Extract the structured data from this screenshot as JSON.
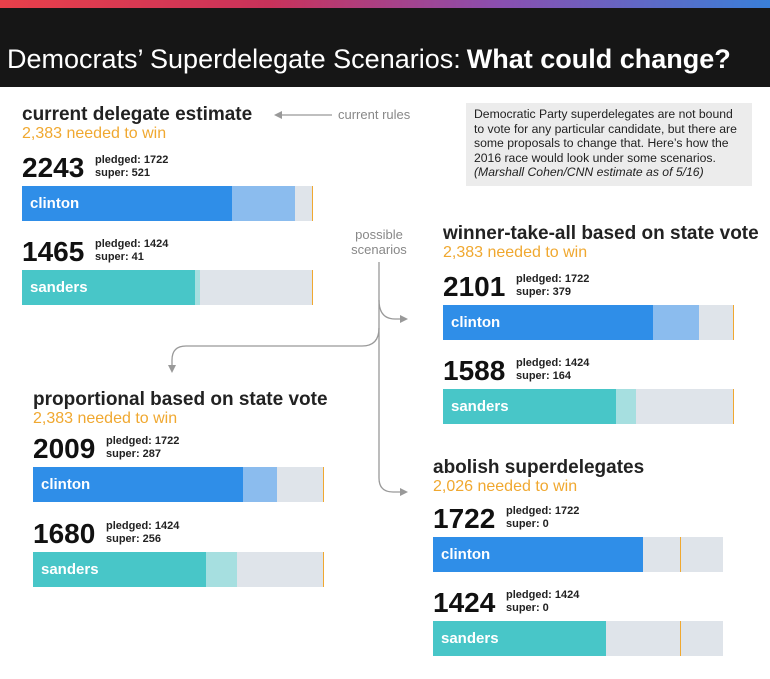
{
  "header": {
    "title_plain": "Democrats’ Superdelegate Scenarios:",
    "title_bold": "What could change?"
  },
  "labels": {
    "current_rules": "current rules",
    "possible_scenarios_line1": "possible",
    "possible_scenarios_line2": "scenarios"
  },
  "note": {
    "text": "Democratic Party superdelegates are not bound to vote for any particular candidate, but there are some proposals to change that. Here’s how the 2016 race would look under some scenarios.",
    "citation": "(Marshall Cohen/CNN estimate as of 5/16)"
  },
  "colors": {
    "clinton_pledged": "#2f8ee8",
    "clinton_super": "#8bbcee",
    "sanders_pledged": "#48c6c8",
    "sanders_super": "#a6dfe0",
    "empty": "#dfe4ea",
    "threshold": "#f0a830"
  },
  "chart_data": [
    {
      "type": "bar",
      "title": "current delegate estimate",
      "subtitle": "2,383 needed to win",
      "needed": 2383,
      "candidates": [
        {
          "name": "clinton",
          "total": "2243",
          "pledged_label": "pledged: 1722",
          "super_label": "super: 521",
          "pledged": 1722,
          "super": 521
        },
        {
          "name": "sanders",
          "total": "1465",
          "pledged_label": "pledged: 1424",
          "super_label": "super: 41",
          "pledged": 1424,
          "super": 41
        }
      ]
    },
    {
      "type": "bar",
      "title": "winner-take-all based on state vote",
      "subtitle": "2,383 needed to win",
      "needed": 2383,
      "candidates": [
        {
          "name": "clinton",
          "total": "2101",
          "pledged_label": "pledged: 1722",
          "super_label": "super: 379",
          "pledged": 1722,
          "super": 379
        },
        {
          "name": "sanders",
          "total": "1588",
          "pledged_label": "pledged: 1424",
          "super_label": "super: 164",
          "pledged": 1424,
          "super": 164
        }
      ]
    },
    {
      "type": "bar",
      "title": "proportional based on state vote",
      "subtitle": "2,383 needed to win",
      "needed": 2383,
      "candidates": [
        {
          "name": "clinton",
          "total": "2009",
          "pledged_label": "pledged: 1722",
          "super_label": "super: 287",
          "pledged": 1722,
          "super": 287
        },
        {
          "name": "sanders",
          "total": "1680",
          "pledged_label": "pledged: 1424",
          "super_label": "super: 256",
          "pledged": 1424,
          "super": 256
        }
      ]
    },
    {
      "type": "bar",
      "title": "abolish superdelegates",
      "subtitle": "2,026 needed to win",
      "needed": 2026,
      "candidates": [
        {
          "name": "clinton",
          "total": "1722",
          "pledged_label": "pledged: 1722",
          "super_label": "super: 0",
          "pledged": 1722,
          "super": 0
        },
        {
          "name": "sanders",
          "total": "1424",
          "pledged_label": "pledged: 1424",
          "super_label": "super: 0",
          "pledged": 1424,
          "super": 0
        }
      ]
    }
  ]
}
